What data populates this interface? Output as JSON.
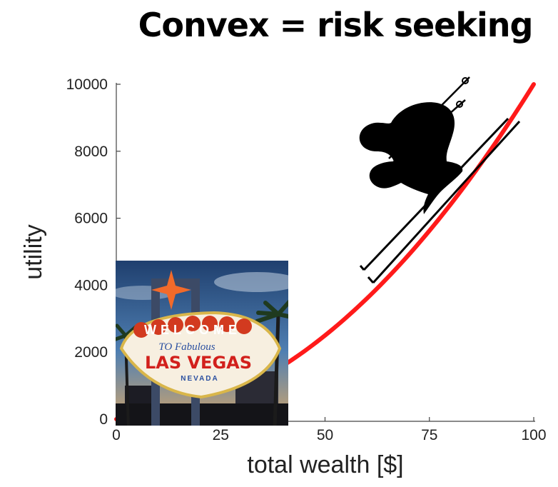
{
  "chart_data": {
    "type": "line",
    "title": "Convex = risk seeking",
    "xlabel": "total wealth [$]",
    "ylabel": "utility",
    "xlim": [
      0,
      100
    ],
    "ylim": [
      0,
      10000
    ],
    "xticks": [
      0,
      25,
      50,
      75,
      100
    ],
    "yticks": [
      0,
      2000,
      4000,
      6000,
      8000,
      10000
    ],
    "grid": false,
    "series": [
      {
        "color": "#ff1a1a",
        "function": "x^2",
        "x": [
          0,
          10,
          20,
          30,
          40,
          50,
          60,
          70,
          80,
          90,
          100
        ],
        "y": [
          0,
          100,
          400,
          900,
          1600,
          2500,
          3600,
          4900,
          6400,
          8100,
          10000
        ]
      }
    ]
  },
  "images": {
    "inset": "las-vegas-welcome-sign-photo",
    "sign_lines": [
      "WELCOME",
      "TO Fabulous",
      "LAS VEGAS",
      "NEVADA"
    ],
    "overlay": "skier-silhouette"
  }
}
